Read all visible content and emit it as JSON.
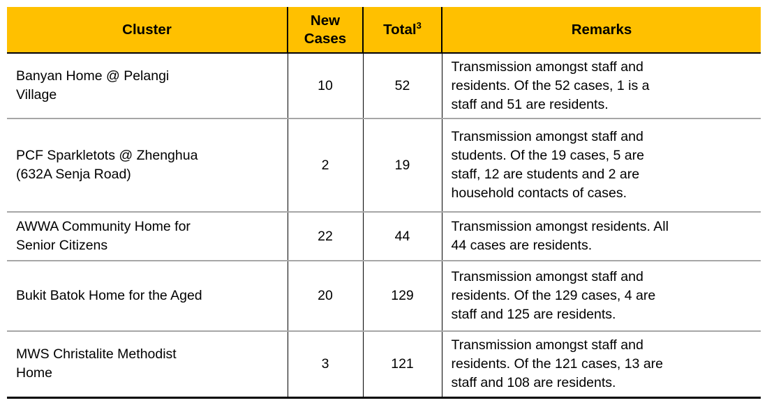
{
  "table": {
    "colors": {
      "header_background": "#FFC000",
      "header_text": "#000000",
      "body_text": "#000000",
      "row_separator": "#A6A6A6",
      "accent_border": "#000000"
    },
    "headers": {
      "cluster": "Cluster",
      "new_cases": "New\nCases",
      "total": "Total",
      "total_superscript": "3",
      "remarks": "Remarks"
    },
    "rows": [
      {
        "cluster": "Banyan Home @ Pelangi\nVillage",
        "new_cases": "10",
        "total": "52",
        "remarks": "Transmission amongst staff and\nresidents. Of the 52 cases, 1 is a\nstaff and 51 are residents."
      },
      {
        "cluster": "PCF Sparkletots @ Zhenghua\n(632A Senja Road)",
        "new_cases": "2",
        "total": "19",
        "remarks": "Transmission amongst staff and\nstudents. Of the 19 cases, 5 are\nstaff, 12 are students and 2 are\nhousehold contacts of cases."
      },
      {
        "cluster": "AWWA Community Home for\nSenior Citizens",
        "new_cases": "22",
        "total": "44",
        "remarks": "Transmission amongst residents. All\n44 cases are residents."
      },
      {
        "cluster": "Bukit Batok Home for the Aged",
        "new_cases": "20",
        "total": "129",
        "remarks": "Transmission amongst staff and\nresidents. Of the 129 cases, 4 are\nstaff and 125 are residents."
      },
      {
        "cluster": "MWS Christalite Methodist\nHome",
        "new_cases": "3",
        "total": "121",
        "remarks": "Transmission amongst staff and\nresidents. Of the 121 cases, 13 are\nstaff and 108 are residents."
      }
    ]
  }
}
